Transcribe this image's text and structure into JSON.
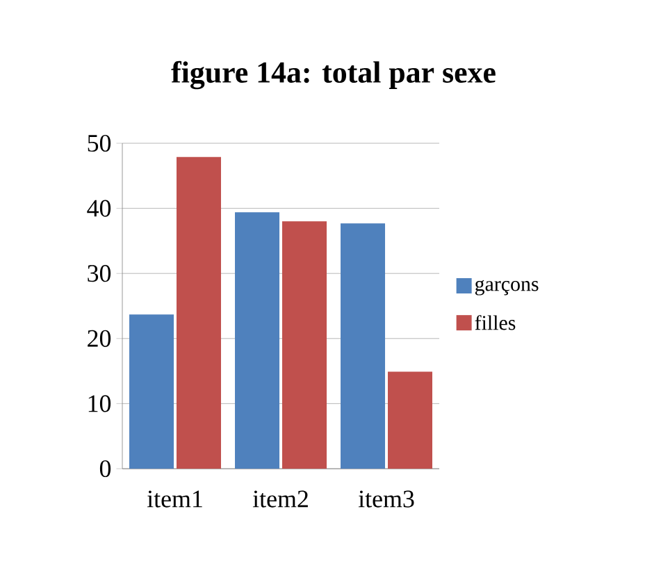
{
  "chart_data": {
    "type": "bar",
    "title": "figure 14a: total par sexe",
    "categories": [
      "item1",
      "item2",
      "item3"
    ],
    "series": [
      {
        "name": "garçons",
        "color": "#4f81bd",
        "values": [
          23.7,
          39.4,
          37.7
        ]
      },
      {
        "name": "filles",
        "color": "#c0504d",
        "values": [
          47.9,
          38.0,
          14.9
        ]
      }
    ],
    "ylim": [
      0,
      50
    ],
    "yticks": [
      0,
      10,
      20,
      30,
      40,
      50
    ],
    "grid": "y",
    "legend": "right"
  }
}
